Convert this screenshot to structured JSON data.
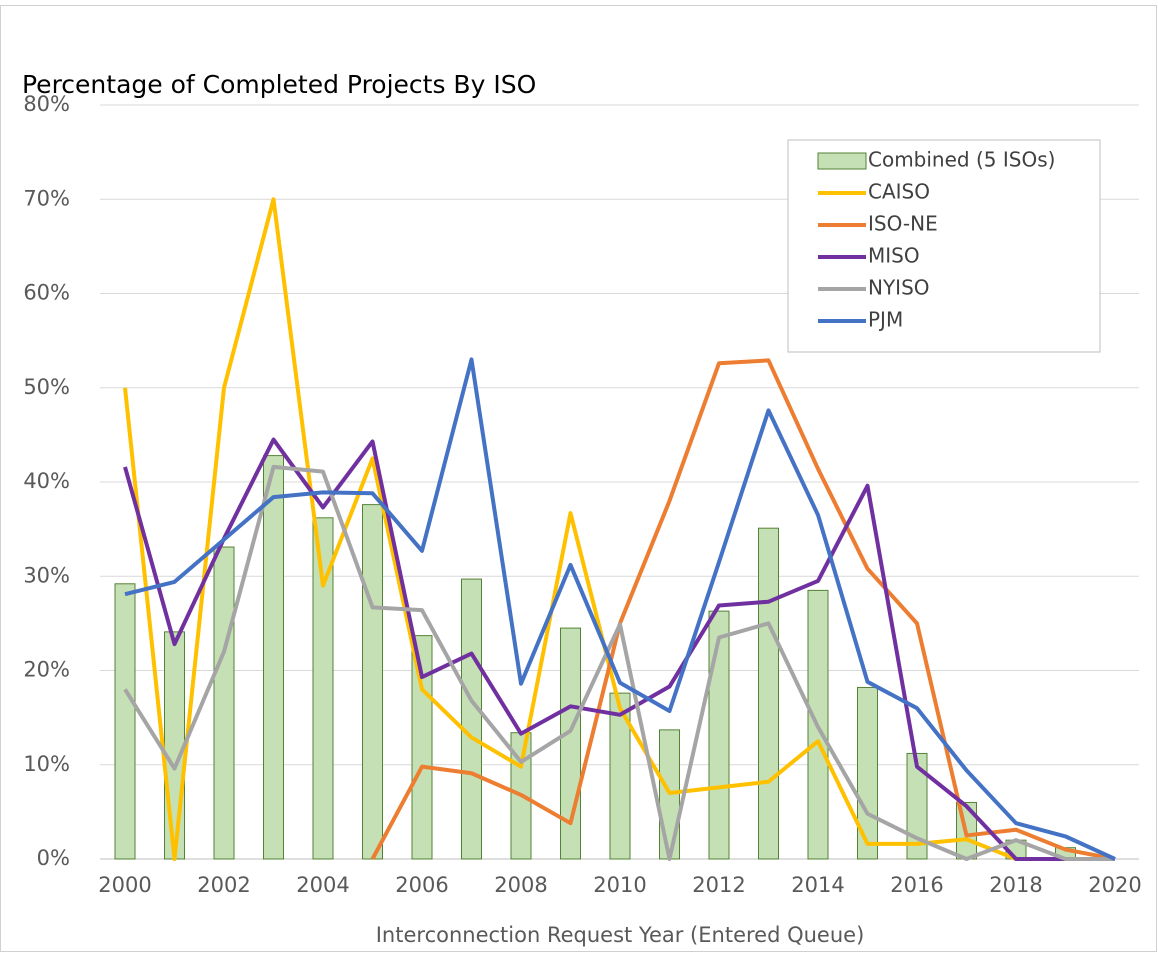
{
  "chart_data": {
    "type": "bar",
    "title": "Percentage of Completed Projects By ISO",
    "x_label": "Interconnection Request Year (Entered Queue)",
    "x": [
      2000,
      2001,
      2002,
      2003,
      2004,
      2005,
      2006,
      2007,
      2008,
      2009,
      2010,
      2011,
      2012,
      2013,
      2014,
      2015,
      2016,
      2017,
      2018,
      2019,
      2020
    ],
    "xlim": [
      2000,
      2020
    ],
    "xticks": [
      2000,
      2002,
      2004,
      2006,
      2008,
      2010,
      2012,
      2014,
      2016,
      2018,
      2020
    ],
    "ylim": [
      0,
      80
    ],
    "yticks": [
      {
        "value": 0,
        "label": "0%"
      },
      {
        "value": 10,
        "label": "10%"
      },
      {
        "value": 20,
        "label": "20%"
      },
      {
        "value": 30,
        "label": "30%"
      },
      {
        "value": 40,
        "label": "40%"
      },
      {
        "value": 50,
        "label": "50%"
      },
      {
        "value": 60,
        "label": "60%"
      },
      {
        "value": 70,
        "label": "70%"
      },
      {
        "value": 80,
        "label": "80%"
      }
    ],
    "grid": true,
    "legend": "top-right",
    "series": [
      {
        "name": "Combined (5 ISOs)",
        "type": "bar",
        "color": "#c5e0b4",
        "edge_color": "#548235",
        "values": [
          29.2,
          24.1,
          33.1,
          42.8,
          36.2,
          37.6,
          23.7,
          29.7,
          13.4,
          24.5,
          17.6,
          13.7,
          26.3,
          35.1,
          28.5,
          18.2,
          11.2,
          6.0,
          2.0,
          1.2,
          0
        ]
      },
      {
        "name": "CAISO",
        "type": "line",
        "color": "#ffc000",
        "values": [
          50,
          0,
          50,
          70,
          29,
          42.5,
          18,
          12.9,
          9.8,
          36.7,
          16,
          7,
          7.6,
          8.2,
          12.5,
          1.6,
          1.6,
          2.1,
          0,
          0,
          0
        ]
      },
      {
        "name": "ISO-NE",
        "type": "line",
        "color": "#ed7d31",
        "values": [
          null,
          null,
          null,
          null,
          null,
          0,
          9.8,
          9.1,
          6.8,
          3.8,
          25,
          38,
          52.6,
          52.9,
          41.4,
          30.8,
          25,
          2.5,
          3.1,
          1,
          0
        ]
      },
      {
        "name": "MISO",
        "type": "line",
        "color": "#7030a0",
        "values": [
          41.6,
          22.8,
          34.0,
          44.5,
          37.3,
          44.3,
          19.3,
          21.8,
          13.3,
          16.2,
          15.3,
          18.3,
          26.9,
          27.3,
          29.5,
          39.6,
          9.8,
          5.6,
          0,
          0,
          0
        ]
      },
      {
        "name": "NYISO",
        "type": "line",
        "color": "#a5a5a5",
        "values": [
          18,
          9.6,
          22,
          41.6,
          41.1,
          26.7,
          26.4,
          16.8,
          10.3,
          13.6,
          24.9,
          0,
          23.5,
          25,
          14,
          4.8,
          2.2,
          0,
          2,
          0,
          0
        ]
      },
      {
        "name": "PJM",
        "type": "line",
        "color": "#4472c4",
        "values": [
          28.1,
          29.4,
          33.9,
          38.4,
          38.9,
          38.8,
          32.7,
          53,
          18.6,
          31.2,
          18.7,
          15.7,
          31.5,
          47.6,
          36.5,
          18.8,
          16,
          9.4,
          3.8,
          2.4,
          0
        ]
      }
    ]
  }
}
